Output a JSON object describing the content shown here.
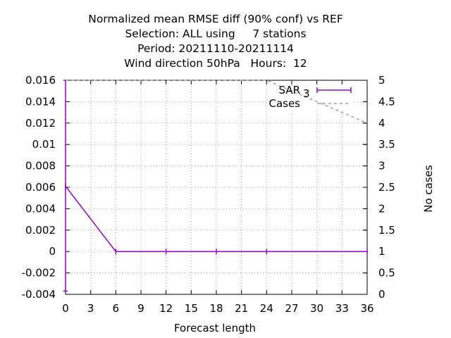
{
  "chart_data": {
    "type": "line",
    "title_lines": [
      "Normalized mean RMSE diff (90% conf) vs REF",
      "Selection: ALL using     7 stations",
      "Period: 20211110-20211114",
      "Wind direction 50hPa   Hours:  12"
    ],
    "xlabel": "Forecast length",
    "ylabel": "",
    "y2label": "No cases",
    "x_ticks": [
      0,
      3,
      6,
      9,
      12,
      15,
      18,
      21,
      24,
      27,
      30,
      33,
      36
    ],
    "y_ticks": [
      -0.004,
      -0.002,
      0,
      0.002,
      0.004,
      0.006,
      0.008,
      0.01,
      0.012,
      0.014,
      0.016
    ],
    "y_tick_labels": [
      "-0.004",
      "-0.002",
      "0",
      "0.002",
      "0.004",
      "0.006",
      "0.008",
      "0.01",
      "0.012",
      "0.014",
      "0.016"
    ],
    "y2_ticks": [
      0,
      0.5,
      1,
      1.5,
      2,
      2.5,
      3,
      3.5,
      4,
      4.5,
      5
    ],
    "y2_tick_labels": [
      "0",
      "0.5",
      "1",
      "1.5",
      "2",
      "2.5",
      "3",
      "3.5",
      "4",
      "4.5",
      "5"
    ],
    "xlim": [
      0,
      36
    ],
    "ylim": [
      -0.004,
      0.016
    ],
    "y2lim": [
      0,
      5
    ],
    "grid": true,
    "legend_position": "top-right",
    "series": [
      {
        "name": "SAR",
        "name_sub": "3",
        "axis": "y",
        "color": "#9400d3",
        "style": "solid-errorbars",
        "x": [
          0,
          6,
          12,
          18,
          24,
          36
        ],
        "values": [
          0.0061,
          0.0,
          0.0,
          0.0,
          0.0,
          0.0
        ],
        "err_low": [
          -0.0037,
          0.0,
          0.0,
          0.0,
          0.0,
          0.0
        ],
        "err_high": [
          0.016,
          0.0,
          0.0,
          0.0,
          0.0,
          0.0
        ]
      },
      {
        "name": "Cases",
        "axis": "y2",
        "color": "#a0a0a0",
        "style": "dashed",
        "x": [
          0,
          6,
          12,
          18,
          24,
          36
        ],
        "values": [
          5,
          5,
          5,
          5,
          5,
          4
        ]
      }
    ]
  }
}
